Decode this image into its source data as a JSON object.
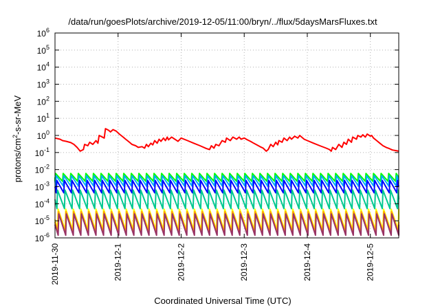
{
  "chart_data": {
    "type": "line",
    "title": "/data/run/goesPlots/archive/2019-12-05/11:00/bryn/../flux/5daysMarsFluxes.txt",
    "xlabel": "Coordinated Universal Time (UTC)",
    "ylabel_parts": [
      "protons/cm",
      "2",
      "-s-sr-MeV"
    ],
    "y_scale": "log",
    "ylim": [
      1e-06,
      1000000.0
    ],
    "y_ticks": [
      {
        "base": "10",
        "exp": "6"
      },
      {
        "base": "10",
        "exp": "5"
      },
      {
        "base": "10",
        "exp": "4"
      },
      {
        "base": "10",
        "exp": "3"
      },
      {
        "base": "10",
        "exp": "2"
      },
      {
        "base": "10",
        "exp": "1"
      },
      {
        "base": "10",
        "exp": "0"
      },
      {
        "base": "10",
        "exp": "-1"
      },
      {
        "base": "10",
        "exp": "-2"
      },
      {
        "base": "10",
        "exp": "-3"
      },
      {
        "base": "10",
        "exp": "-4"
      },
      {
        "base": "10",
        "exp": "-5"
      },
      {
        "base": "10",
        "exp": "-6"
      }
    ],
    "x_unit": "days since 2019-11-30 00:00 UTC",
    "xlim": [
      0,
      5.45
    ],
    "x_ticks": [
      {
        "x": 0,
        "label": "2019-11-30"
      },
      {
        "x": 1,
        "label": "2019-12-1"
      },
      {
        "x": 2,
        "label": "2019-12-2"
      },
      {
        "x": 3,
        "label": "2019-12-3"
      },
      {
        "x": 4,
        "label": "2019-12-4"
      },
      {
        "x": 5,
        "label": "2019-12-5"
      }
    ],
    "grid": true,
    "series": [
      {
        "color": "#ff0000",
        "points": [
          [
            0.0,
            0.7
          ],
          [
            0.08,
            0.6
          ],
          [
            0.12,
            0.5
          ],
          [
            0.18,
            0.45
          ],
          [
            0.25,
            0.38
          ],
          [
            0.3,
            0.3
          ],
          [
            0.35,
            0.2
          ],
          [
            0.4,
            0.12
          ],
          [
            0.45,
            0.15
          ],
          [
            0.47,
            0.3
          ],
          [
            0.52,
            0.25
          ],
          [
            0.55,
            0.4
          ],
          [
            0.6,
            0.3
          ],
          [
            0.65,
            0.5
          ],
          [
            0.68,
            0.35
          ],
          [
            0.7,
            1.0
          ],
          [
            0.78,
            0.7
          ],
          [
            0.8,
            2.5
          ],
          [
            0.85,
            2.0
          ],
          [
            0.88,
            1.6
          ],
          [
            0.92,
            2.2
          ],
          [
            0.97,
            1.8
          ],
          [
            1.02,
            1.2
          ],
          [
            1.08,
            0.8
          ],
          [
            1.12,
            0.6
          ],
          [
            1.18,
            0.4
          ],
          [
            1.22,
            0.3
          ],
          [
            1.28,
            0.25
          ],
          [
            1.32,
            0.2
          ],
          [
            1.38,
            0.22
          ],
          [
            1.42,
            0.18
          ],
          [
            1.45,
            0.3
          ],
          [
            1.48,
            0.22
          ],
          [
            1.52,
            0.35
          ],
          [
            1.55,
            0.28
          ],
          [
            1.58,
            0.5
          ],
          [
            1.62,
            0.35
          ],
          [
            1.65,
            0.6
          ],
          [
            1.68,
            0.45
          ],
          [
            1.72,
            0.7
          ],
          [
            1.75,
            0.5
          ],
          [
            1.78,
            0.8
          ],
          [
            1.8,
            0.55
          ],
          [
            1.85,
            0.8
          ],
          [
            1.9,
            0.6
          ],
          [
            1.95,
            0.45
          ],
          [
            2.0,
            0.7
          ],
          [
            2.1,
            0.5
          ],
          [
            2.2,
            0.35
          ],
          [
            2.3,
            0.25
          ],
          [
            2.4,
            0.17
          ],
          [
            2.45,
            0.15
          ],
          [
            2.48,
            0.25
          ],
          [
            2.52,
            0.18
          ],
          [
            2.55,
            0.3
          ],
          [
            2.6,
            0.25
          ],
          [
            2.65,
            0.5
          ],
          [
            2.7,
            0.4
          ],
          [
            2.72,
            0.7
          ],
          [
            2.78,
            0.5
          ],
          [
            2.82,
            0.8
          ],
          [
            2.88,
            0.6
          ],
          [
            2.92,
            0.8
          ],
          [
            2.95,
            0.6
          ],
          [
            3.0,
            0.7
          ],
          [
            3.05,
            0.55
          ],
          [
            3.1,
            0.45
          ],
          [
            3.15,
            0.35
          ],
          [
            3.2,
            0.28
          ],
          [
            3.25,
            0.22
          ],
          [
            3.3,
            0.18
          ],
          [
            3.35,
            0.12
          ],
          [
            3.38,
            0.15
          ],
          [
            3.42,
            0.3
          ],
          [
            3.46,
            0.22
          ],
          [
            3.5,
            0.4
          ],
          [
            3.53,
            0.28
          ],
          [
            3.55,
            0.5
          ],
          [
            3.6,
            0.4
          ],
          [
            3.63,
            0.7
          ],
          [
            3.68,
            0.5
          ],
          [
            3.72,
            0.8
          ],
          [
            3.75,
            0.6
          ],
          [
            3.8,
            0.9
          ],
          [
            3.85,
            0.7
          ],
          [
            3.88,
            1.0
          ],
          [
            3.92,
            0.75
          ],
          [
            3.95,
            0.6
          ],
          [
            4.0,
            0.5
          ],
          [
            4.1,
            0.35
          ],
          [
            4.2,
            0.25
          ],
          [
            4.3,
            0.18
          ],
          [
            4.35,
            0.15
          ],
          [
            4.38,
            0.12
          ],
          [
            4.4,
            0.2
          ],
          [
            4.45,
            0.15
          ],
          [
            4.5,
            0.3
          ],
          [
            4.55,
            0.2
          ],
          [
            4.58,
            0.4
          ],
          [
            4.62,
            0.3
          ],
          [
            4.65,
            0.6
          ],
          [
            4.7,
            0.4
          ],
          [
            4.72,
            0.8
          ],
          [
            4.78,
            0.6
          ],
          [
            4.8,
            1.0
          ],
          [
            4.85,
            0.8
          ],
          [
            4.88,
            1.1
          ],
          [
            4.92,
            0.8
          ],
          [
            4.95,
            1.2
          ],
          [
            5.0,
            0.9
          ],
          [
            5.02,
            1.0
          ],
          [
            5.05,
            0.7
          ],
          [
            5.1,
            0.5
          ],
          [
            5.15,
            0.35
          ],
          [
            5.2,
            0.25
          ],
          [
            5.25,
            0.2
          ],
          [
            5.3,
            0.17
          ],
          [
            5.35,
            0.14
          ],
          [
            5.4,
            0.13
          ],
          [
            5.45,
            0.12
          ]
        ]
      },
      {
        "color": "#00ff00",
        "base": 0.0035,
        "amp": 1.7,
        "period": 0.12,
        "phase": 0.0
      },
      {
        "color": "#00aaff",
        "base": 0.0022,
        "amp": 2.0,
        "period": 0.12,
        "phase": 0.01
      },
      {
        "color": "#0000ff",
        "base": 0.001,
        "amp": 2.3,
        "period": 0.12,
        "phase": 0.02
      },
      {
        "color": "#00c890",
        "base": 0.00018,
        "amp": 3.5,
        "period": 0.12,
        "phase": 0.03
      },
      {
        "color": "#ffff00",
        "base": 1.2e-05,
        "amp": 4.0,
        "period": 0.12,
        "phase": 0.04
      },
      {
        "color": "#ff9900",
        "base": 8.5e-06,
        "amp": 4.0,
        "period": 0.12,
        "phase": 0.045
      },
      {
        "color": "#993366",
        "base": 6e-06,
        "amp": 4.2,
        "period": 0.12,
        "phase": 0.05
      }
    ]
  }
}
